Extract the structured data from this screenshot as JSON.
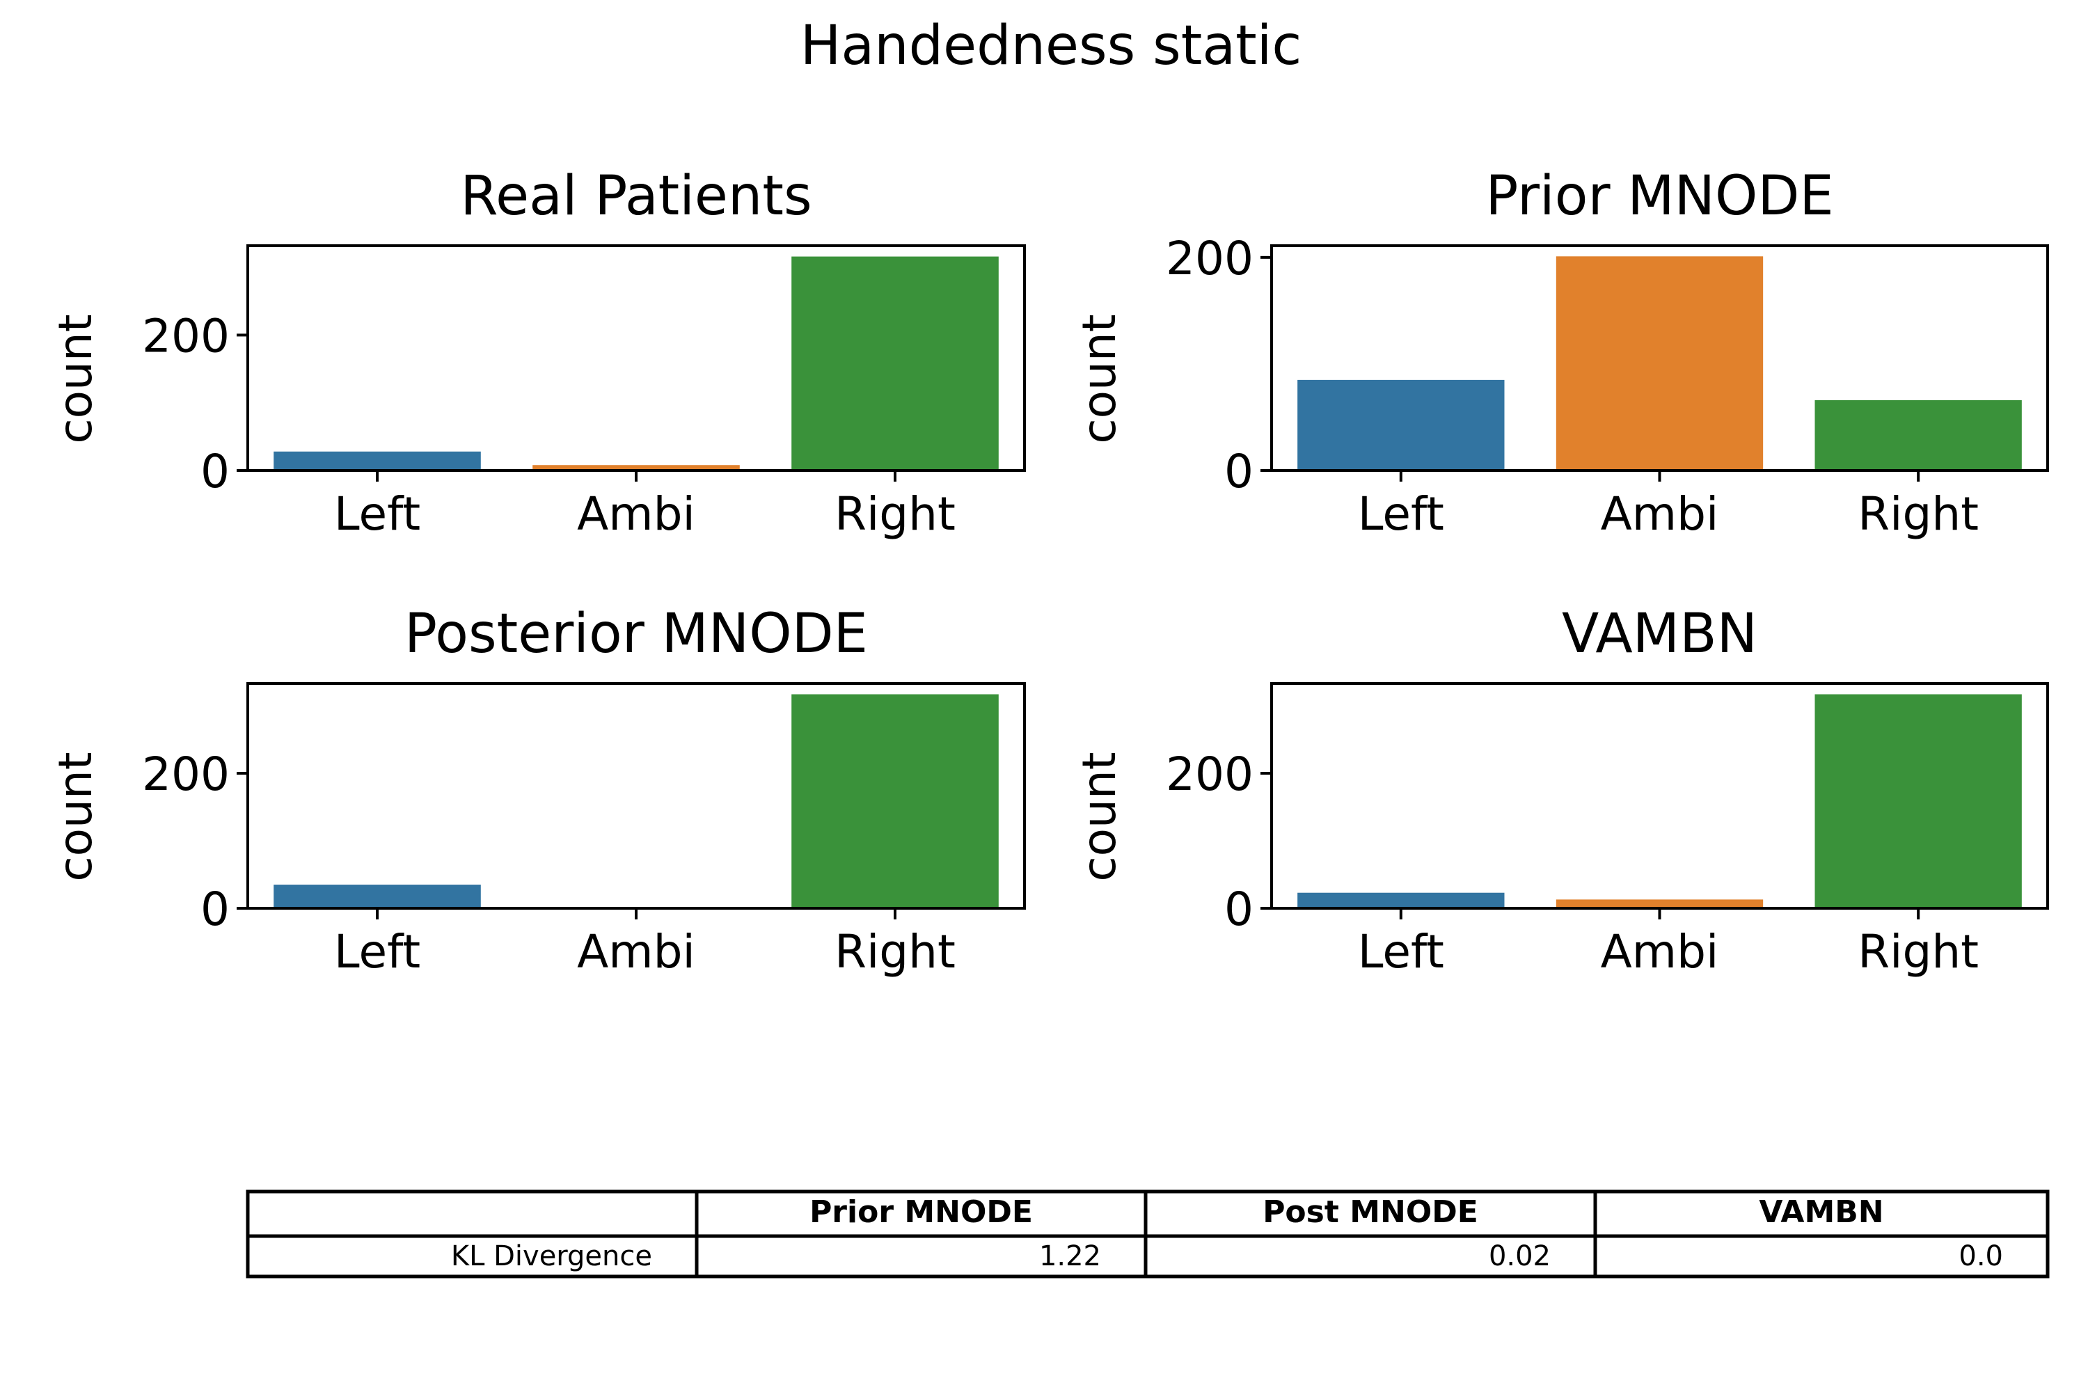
{
  "suptitle": "Handedness static",
  "colors": {
    "Left": "#3274a1",
    "Ambi": "#e1812c",
    "Right": "#3a923a",
    "axis": "#000000"
  },
  "chart_data": [
    {
      "type": "bar",
      "title": "Real Patients",
      "xlabel": "",
      "ylabel": "count",
      "categories": [
        "Left",
        "Ambi",
        "Right"
      ],
      "values": [
        28,
        8,
        316
      ],
      "ylim": [
        0,
        332
      ],
      "yticks": [
        0,
        200
      ]
    },
    {
      "type": "bar",
      "title": "Prior MNODE",
      "xlabel": "",
      "ylabel": "count",
      "categories": [
        "Left",
        "Ambi",
        "Right"
      ],
      "values": [
        85,
        201,
        66
      ],
      "ylim": [
        0,
        211
      ],
      "yticks": [
        0,
        200
      ]
    },
    {
      "type": "bar",
      "title": "Posterior MNODE",
      "xlabel": "",
      "ylabel": "count",
      "categories": [
        "Left",
        "Ambi",
        "Right"
      ],
      "values": [
        35,
        0,
        317
      ],
      "ylim": [
        0,
        333
      ],
      "yticks": [
        0,
        200
      ]
    },
    {
      "type": "bar",
      "title": "VAMBN",
      "xlabel": "",
      "ylabel": "count",
      "categories": [
        "Left",
        "Ambi",
        "Right"
      ],
      "values": [
        23,
        13,
        317
      ],
      "ylim": [
        0,
        333
      ],
      "yticks": [
        0,
        200
      ]
    },
    {
      "type": "table",
      "columns": [
        "",
        "Prior MNODE",
        "Post MNODE",
        "VAMBN"
      ],
      "rows": [
        [
          "KL Divergence",
          "1.22",
          "0.02",
          "0.0"
        ]
      ]
    }
  ]
}
